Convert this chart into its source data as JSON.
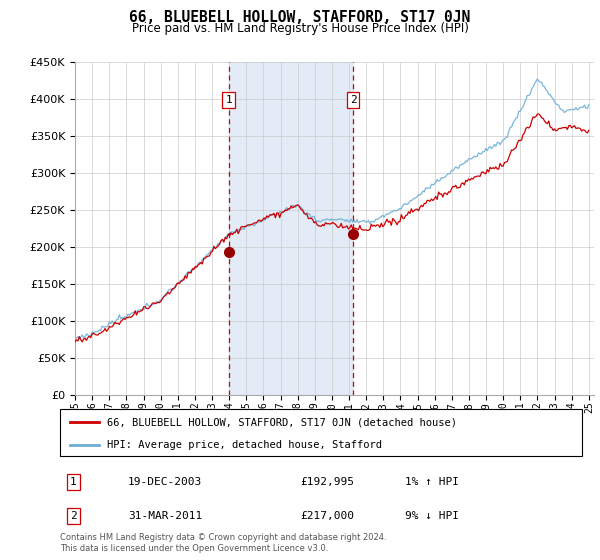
{
  "title": "66, BLUEBELL HOLLOW, STAFFORD, ST17 0JN",
  "subtitle": "Price paid vs. HM Land Registry's House Price Index (HPI)",
  "legend_line1": "66, BLUEBELL HOLLOW, STAFFORD, ST17 0JN (detached house)",
  "legend_line2": "HPI: Average price, detached house, Stafford",
  "annotation1_label": "1",
  "annotation1_date": "19-DEC-2003",
  "annotation1_price": "£192,995",
  "annotation1_hpi": "1% ↑ HPI",
  "annotation2_label": "2",
  "annotation2_date": "31-MAR-2011",
  "annotation2_price": "£217,000",
  "annotation2_hpi": "9% ↓ HPI",
  "footer": "Contains HM Land Registry data © Crown copyright and database right 2024.\nThis data is licensed under the Open Government Licence v3.0.",
  "hpi_color": "#6baed6",
  "price_color": "#cc0000",
  "marker_color": "#990000",
  "vline_color": "#cc0000",
  "shading_color": "#dde8f5",
  "ylim": [
    0,
    450000
  ],
  "yticks": [
    0,
    50000,
    100000,
    150000,
    200000,
    250000,
    300000,
    350000,
    400000,
    450000
  ],
  "year_start": 1995,
  "year_end": 2025,
  "purchase1_year": 2003.97,
  "purchase2_year": 2011.25,
  "purchase1_price": 192995,
  "purchase2_price": 217000
}
